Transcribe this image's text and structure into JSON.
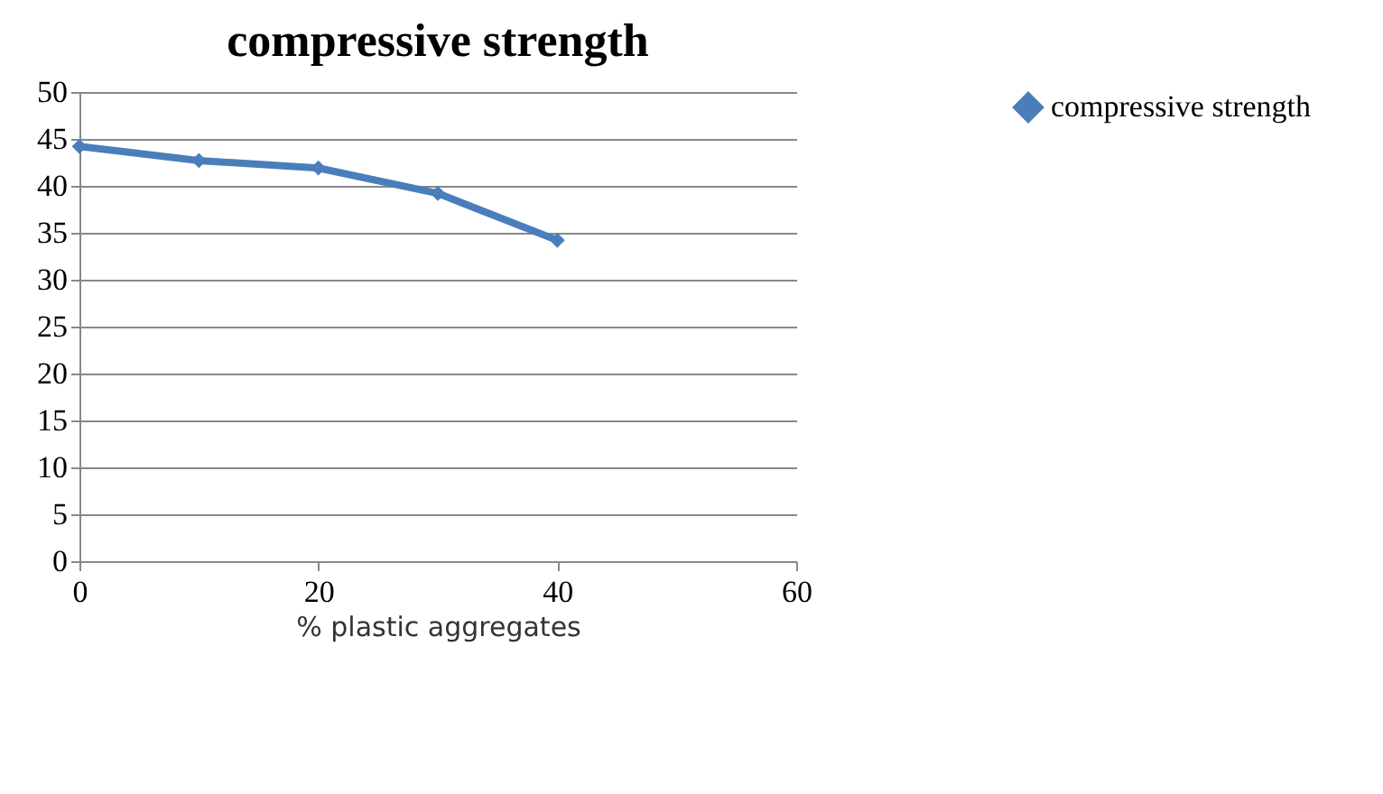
{
  "chart_data": {
    "type": "line",
    "title": "compressive strength",
    "xlabel": "% plastic aggregates",
    "x": [
      0,
      10,
      20,
      30,
      40
    ],
    "series": [
      {
        "name": "compressive strength",
        "color": "#4a7ebb",
        "values": [
          44.2,
          42.7,
          41.9,
          39.2,
          34.2
        ]
      }
    ],
    "xlim": [
      0,
      60
    ],
    "xticks": [
      0,
      20,
      40,
      60
    ],
    "ylim": [
      0,
      50
    ],
    "yticks": [
      0,
      5,
      10,
      15,
      20,
      25,
      30,
      35,
      40,
      45,
      50
    ],
    "grid": "y",
    "legend": "right",
    "marker": "diamond",
    "line_style": "solid"
  }
}
